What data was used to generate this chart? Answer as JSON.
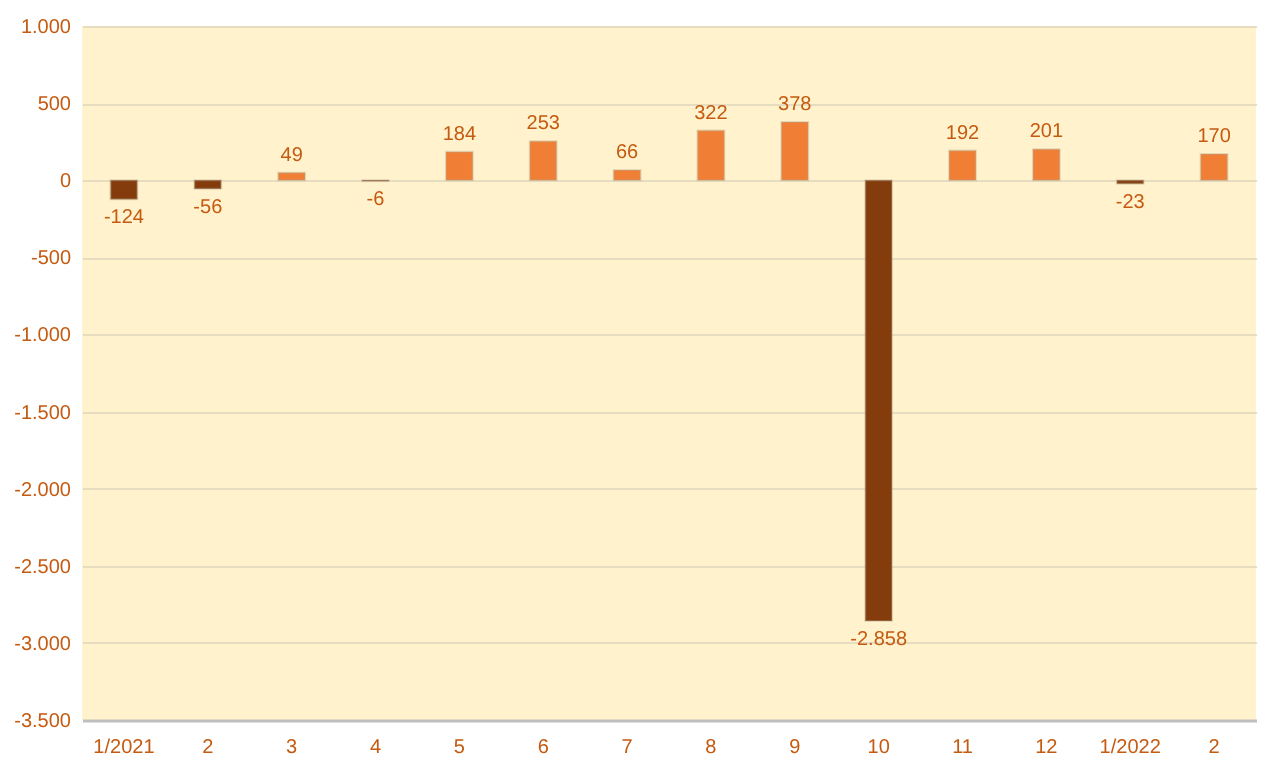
{
  "chart_data": {
    "type": "bar",
    "categories": [
      "1/2021",
      "2",
      "3",
      "4",
      "5",
      "6",
      "7",
      "8",
      "9",
      "10",
      "11",
      "12",
      "1/2022",
      "2"
    ],
    "values": [
      -124,
      -56,
      49,
      -6,
      184,
      253,
      66,
      322,
      378,
      -2858,
      192,
      201,
      -23,
      170
    ],
    "colors": [
      "#843c0c",
      "#843c0c",
      "#f07f35",
      "#843c0c",
      "#f07f35",
      "#f07f35",
      "#f07f35",
      "#f07f35",
      "#f07f35",
      "#843c0c",
      "#f07f35",
      "#f07f35",
      "#843c0c",
      "#f07f35"
    ],
    "value_labels": [
      "-124",
      "-56",
      "49",
      "-6",
      "184",
      "253",
      "66",
      "322",
      "378",
      "-2.858",
      "192",
      "201",
      "-23",
      "170"
    ],
    "ylim": [
      -3500,
      1000
    ],
    "yticks": [
      {
        "value": 1000,
        "label": "1.000"
      },
      {
        "value": 500,
        "label": "500"
      },
      {
        "value": 0,
        "label": "0"
      },
      {
        "value": -500,
        "label": "-500"
      },
      {
        "value": -1000,
        "label": "-1.000"
      },
      {
        "value": -1500,
        "label": "-1.500"
      },
      {
        "value": -2000,
        "label": "-2.000"
      },
      {
        "value": -2500,
        "label": "-2.500"
      },
      {
        "value": -3000,
        "label": "-3.000"
      },
      {
        "value": -3500,
        "label": "-3.500"
      }
    ],
    "grid": "y"
  }
}
